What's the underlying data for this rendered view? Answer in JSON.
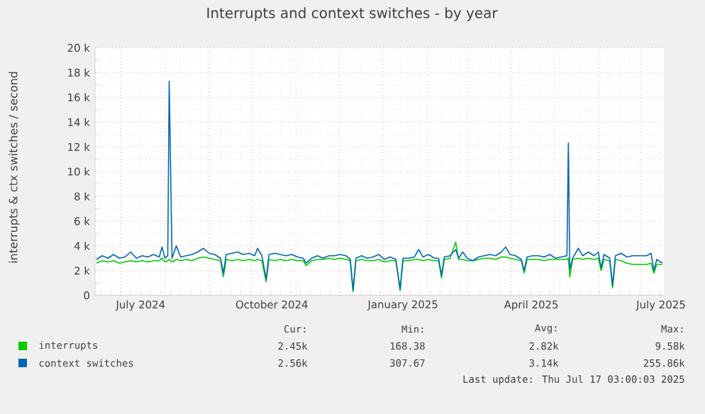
{
  "chart_data": {
    "type": "line",
    "title": "Interrupts and context switches - by year",
    "ylabel": "interrupts & ctx switches / second",
    "xlim": [
      "2024-06-13",
      "2025-07-17"
    ],
    "xticks": [
      {
        "value": "2024-07-15",
        "label": "July 2024"
      },
      {
        "value": "2024-10-15",
        "label": "October 2024"
      },
      {
        "value": "2025-01-15",
        "label": "January 2025"
      },
      {
        "value": "2025-04-15",
        "label": "April 2025"
      },
      {
        "value": "2025-07-15",
        "label": "July 2025"
      }
    ],
    "ylim": [
      0,
      20000
    ],
    "yticks": [
      0,
      {
        "value": 2000,
        "label": "2 k"
      },
      {
        "value": 4000,
        "label": "4 k"
      },
      {
        "value": 6000,
        "label": "6 k"
      },
      {
        "value": 8000,
        "label": "8 k"
      },
      {
        "value": 10000,
        "label": "10 k"
      },
      {
        "value": 12000,
        "label": "12 k"
      },
      {
        "value": 14000,
        "label": "14 k"
      },
      {
        "value": 16000,
        "label": "16 k"
      },
      {
        "value": 18000,
        "label": "18 k"
      },
      {
        "value": 20000,
        "label": "20 k"
      }
    ],
    "grid": true,
    "legend": "bottom",
    "marker": "none",
    "line_style": "solid",
    "x": [
      "2024-06-14",
      "2024-06-18",
      "2024-06-22",
      "2024-06-26",
      "2024-06-30",
      "2024-07-04",
      "2024-07-08",
      "2024-07-12",
      "2024-07-16",
      "2024-07-20",
      "2024-07-24",
      "2024-07-28",
      "2024-07-30",
      "2024-08-01",
      "2024-08-03",
      "2024-08-04",
      "2024-08-06",
      "2024-08-09",
      "2024-08-12",
      "2024-08-16",
      "2024-08-20",
      "2024-08-24",
      "2024-08-28",
      "2024-09-01",
      "2024-09-05",
      "2024-09-09",
      "2024-09-11",
      "2024-09-13",
      "2024-09-17",
      "2024-09-21",
      "2024-09-25",
      "2024-09-29",
      "2024-10-03",
      "2024-10-05",
      "2024-10-08",
      "2024-10-11",
      "2024-10-13",
      "2024-10-17",
      "2024-10-21",
      "2024-10-25",
      "2024-10-29",
      "2024-11-02",
      "2024-11-06",
      "2024-11-08",
      "2024-11-12",
      "2024-11-16",
      "2024-11-20",
      "2024-11-24",
      "2024-11-28",
      "2024-12-02",
      "2024-12-06",
      "2024-12-09",
      "2024-12-11",
      "2024-12-13",
      "2024-12-17",
      "2024-12-21",
      "2024-12-25",
      "2024-12-29",
      "2025-01-02",
      "2025-01-06",
      "2025-01-10",
      "2025-01-13",
      "2025-01-15",
      "2025-01-19",
      "2025-01-23",
      "2025-01-26",
      "2025-01-29",
      "2025-02-02",
      "2025-02-06",
      "2025-02-09",
      "2025-02-11",
      "2025-02-13",
      "2025-02-17",
      "2025-02-21",
      "2025-02-23",
      "2025-02-26",
      "2025-03-01",
      "2025-03-05",
      "2025-03-09",
      "2025-03-13",
      "2025-03-17",
      "2025-03-21",
      "2025-03-25",
      "2025-03-28",
      "2025-03-31",
      "2025-04-04",
      "2025-04-08",
      "2025-04-10",
      "2025-04-12",
      "2025-04-16",
      "2025-04-20",
      "2025-04-24",
      "2025-04-28",
      "2025-05-02",
      "2025-05-06",
      "2025-05-10",
      "2025-05-11",
      "2025-05-12",
      "2025-05-14",
      "2025-05-18",
      "2025-05-21",
      "2025-05-25",
      "2025-05-29",
      "2025-06-01",
      "2025-06-03",
      "2025-06-05",
      "2025-06-09",
      "2025-06-11",
      "2025-06-13",
      "2025-06-17",
      "2025-06-21",
      "2025-06-25",
      "2025-06-29",
      "2025-07-04",
      "2025-07-05",
      "2025-07-08",
      "2025-07-10",
      "2025-07-12",
      "2025-07-16"
    ],
    "series": [
      {
        "name": "interrupts",
        "color": "#00cc00",
        "values": [
          2600,
          2800,
          2700,
          2800,
          2600,
          2700,
          2800,
          2700,
          2800,
          2700,
          2800,
          2800,
          3000,
          2700,
          2800,
          2900,
          2700,
          2900,
          2800,
          2900,
          2800,
          3000,
          3100,
          3000,
          2900,
          2800,
          1500,
          2900,
          2800,
          2900,
          2800,
          2900,
          2800,
          2900,
          2800,
          1100,
          2900,
          2800,
          2900,
          2800,
          2900,
          2800,
          2800,
          2400,
          2800,
          2900,
          2900,
          3000,
          2900,
          3000,
          2900,
          2800,
          300,
          2800,
          2900,
          2800,
          2800,
          2900,
          2700,
          2800,
          2800,
          400,
          2800,
          2800,
          2900,
          2900,
          2800,
          2900,
          2800,
          2800,
          1400,
          2900,
          3000,
          4300,
          2900,
          2900,
          2800,
          2800,
          2900,
          3000,
          3000,
          2900,
          3100,
          3100,
          3000,
          2900,
          2800,
          1800,
          2900,
          2900,
          2900,
          2800,
          2900,
          2900,
          2900,
          2900,
          3000,
          1500,
          2900,
          3000,
          2900,
          3000,
          2900,
          3000,
          2000,
          2900,
          2800,
          600,
          2900,
          2800,
          2600,
          2500,
          2500,
          2500,
          2500,
          2600,
          1800,
          2500,
          2500
        ]
      },
      {
        "name": "context switches",
        "color": "#0066b3",
        "values": [
          2900,
          3200,
          3000,
          3300,
          3000,
          3100,
          3500,
          3000,
          3200,
          3100,
          3300,
          3100,
          3900,
          3000,
          3200,
          17300,
          3000,
          4000,
          3100,
          3200,
          3300,
          3500,
          3800,
          3400,
          3300,
          3000,
          1800,
          3300,
          3400,
          3500,
          3300,
          3400,
          3200,
          3800,
          3200,
          1300,
          3300,
          3400,
          3300,
          3200,
          3300,
          3100,
          3000,
          2600,
          3000,
          3200,
          3000,
          3200,
          3200,
          3300,
          3200,
          2900,
          400,
          3000,
          3200,
          3000,
          3100,
          3300,
          2900,
          3100,
          2900,
          500,
          3000,
          3000,
          3100,
          3700,
          3100,
          3300,
          3000,
          3000,
          1600,
          3100,
          3200,
          3700,
          3000,
          3500,
          3000,
          2800,
          3100,
          3200,
          3300,
          3200,
          3500,
          3900,
          3300,
          3200,
          2900,
          2000,
          3100,
          3200,
          3200,
          3100,
          3300,
          3000,
          3100,
          3200,
          12300,
          2100,
          3000,
          3800,
          3200,
          3500,
          3200,
          3500,
          2200,
          3300,
          3000,
          800,
          3200,
          3400,
          3100,
          3200,
          3200,
          3200,
          3200,
          3400,
          2000,
          2900,
          2600
        ]
      }
    ],
    "annotations": [
      "Cur:",
      "Min:",
      "Avg:",
      "Max:",
      "2.45k",
      "168.38",
      "2.82k",
      "9.58k",
      "2.56k",
      "307.67",
      "3.14k",
      "255.86k",
      "Last update: Thu Jul 17 03:00:03 2025"
    ]
  }
}
